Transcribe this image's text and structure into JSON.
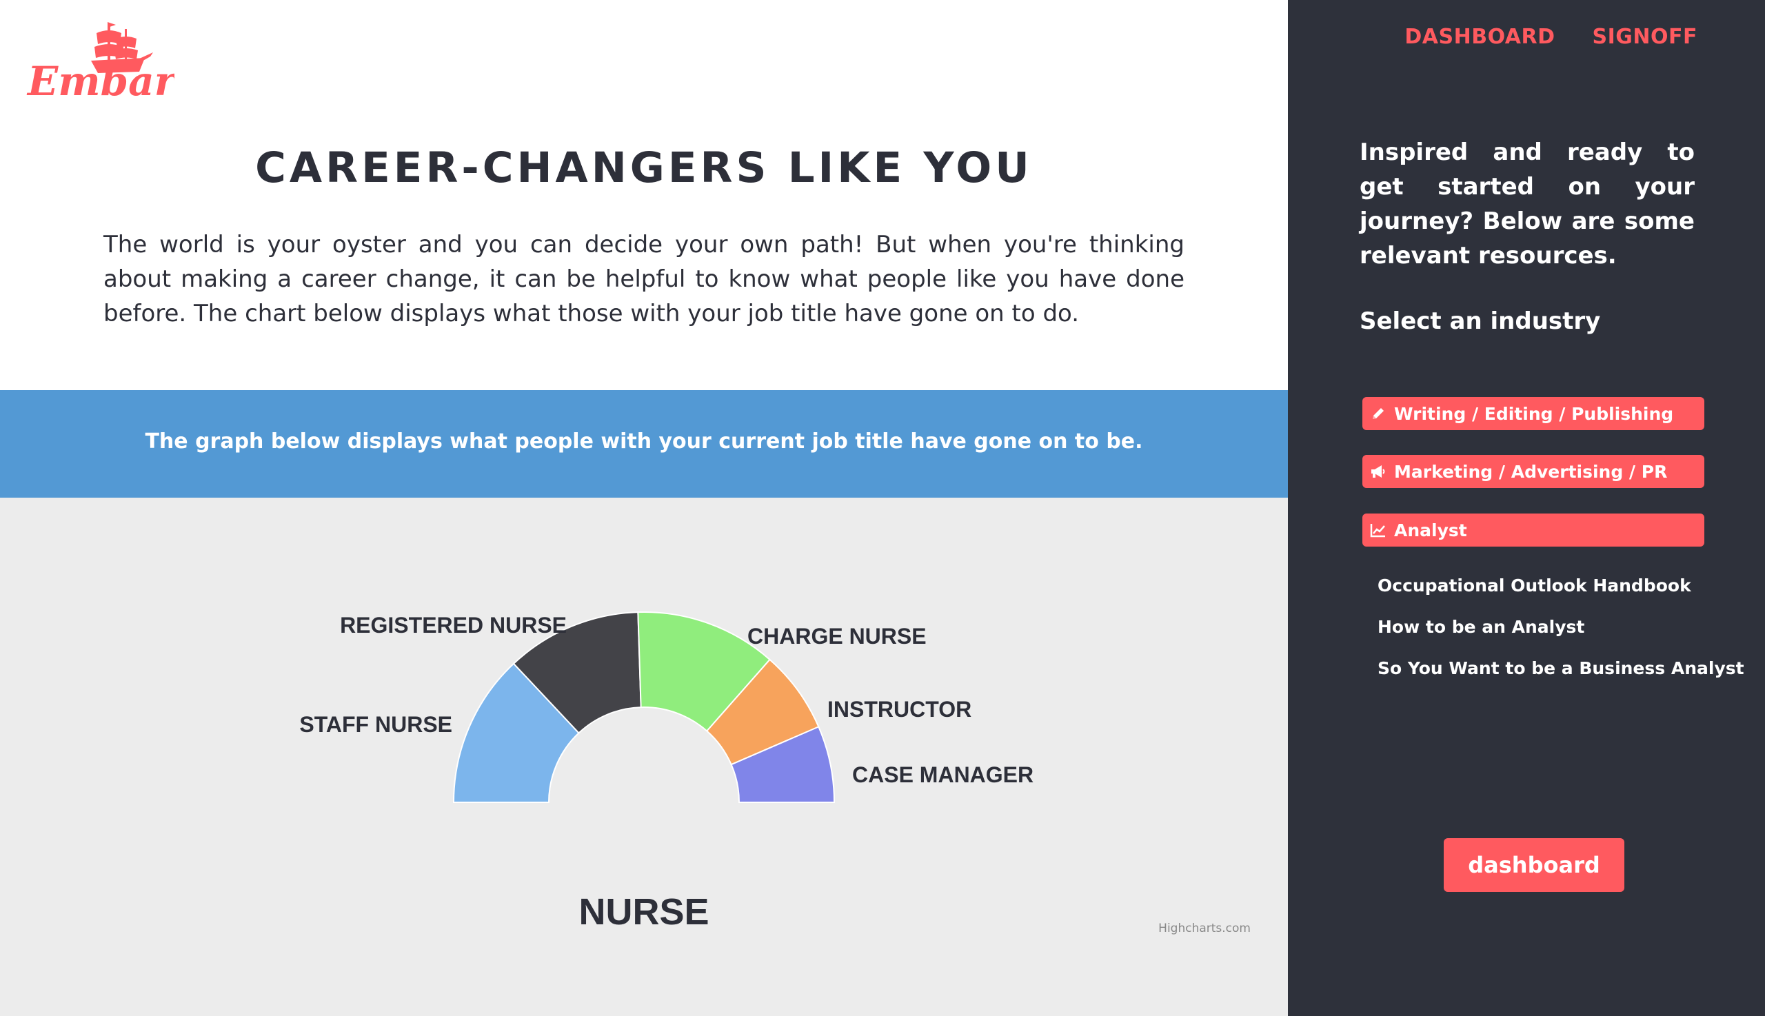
{
  "brand": {
    "name": "Embark!",
    "color": "#ff5a5f"
  },
  "main": {
    "title": "CAREER-CHANGERS LIKE YOU",
    "intro": "The world is your oyster and you can decide your own path! But when you're thinking about making a career change, it can be helpful to know what people like you have done before. The chart below displays what those with your job title have gone on to do.",
    "band_text": "The graph below displays what people with your current job title have gone on to be."
  },
  "chart_data": {
    "type": "pie",
    "variant": "semi-circle donut",
    "title": "NURSE",
    "credits": "Highcharts.com",
    "slices": [
      {
        "label": "STAFF NURSE",
        "value": 26,
        "color": "#7cb5ec"
      },
      {
        "label": "REGISTERED NURSE",
        "value": 23,
        "color": "#434348"
      },
      {
        "label": "CHARGE NURSE",
        "value": 24,
        "color": "#90ed7d"
      },
      {
        "label": "INSTRUCTOR",
        "value": 14,
        "color": "#f7a35c"
      },
      {
        "label": "CASE MANAGER",
        "value": 13,
        "color": "#8085e9"
      }
    ]
  },
  "nav": {
    "dashboard": "DASHBOARD",
    "signoff": "SIGNOFF"
  },
  "sidebar": {
    "intro": "Inspired and ready to get started on your journey? Below are some relevant resources.",
    "select_label": "Select an industry",
    "industries": [
      {
        "label": "Writing / Editing / Publishing",
        "icon": "pencil-icon"
      },
      {
        "label": "Marketing / Advertising / PR",
        "icon": "megaphone-icon"
      },
      {
        "label": "Analyst",
        "icon": "line-chart-icon"
      }
    ],
    "resources": [
      "Occupational Outlook Handbook",
      "How to be an Analyst",
      "So You Want to be a Business Analyst"
    ],
    "dashboard_button": "dashboard"
  },
  "colors": {
    "accent": "#ff5a5f",
    "sidebar_bg": "#2e313b",
    "band_bg": "#5399d4",
    "chart_bg": "#ececec",
    "text_dark": "#2d2f39"
  }
}
